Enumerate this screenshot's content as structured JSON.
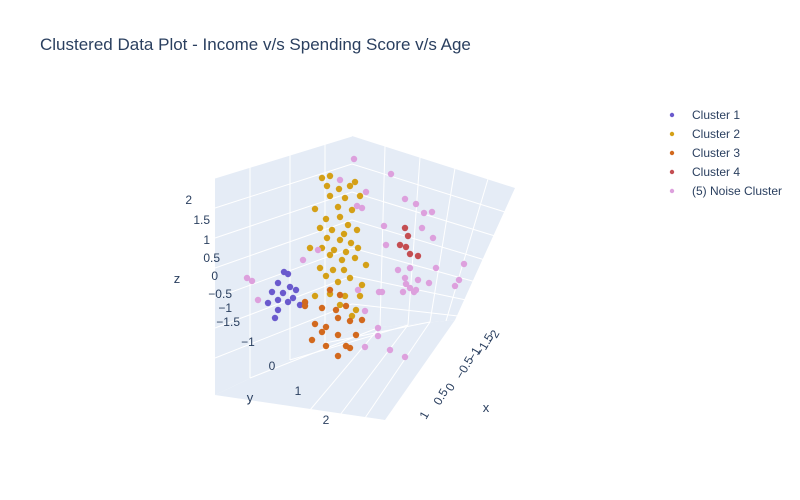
{
  "chart_data": {
    "type": "scatter",
    "title": "Clustered Data Plot - Income v/s Spending Score v/s Age",
    "xlabel": "x",
    "ylabel": "y",
    "zlabel": "z",
    "x_ticks": [
      "−2",
      "−1.5",
      "−1",
      "−0.5",
      "0",
      "0.5",
      "1"
    ],
    "y_ticks": [
      "−1",
      "0",
      "1",
      "2"
    ],
    "z_ticks": [
      "2",
      "1.5",
      "1",
      "0.5",
      "0",
      "−0.5",
      "−1",
      "−1.5"
    ],
    "legend_position": "top-right",
    "series": [
      {
        "name": "Cluster 1",
        "color": "#6a5acd",
        "points": [
          [
            284,
            272
          ],
          [
            288,
            274
          ],
          [
            278,
            283
          ],
          [
            290,
            287
          ],
          [
            296,
            290
          ],
          [
            272,
            292
          ],
          [
            283,
            293
          ],
          [
            293,
            298
          ],
          [
            278,
            300
          ],
          [
            288,
            302
          ],
          [
            300,
            305
          ],
          [
            305,
            303
          ],
          [
            278,
            310
          ],
          [
            268,
            303
          ],
          [
            275,
            318
          ]
        ]
      },
      {
        "name": "Cluster 2",
        "color": "#d4a017",
        "points": [
          [
            322,
            178
          ],
          [
            330,
            176
          ],
          [
            327,
            186
          ],
          [
            339,
            189
          ],
          [
            350,
            186
          ],
          [
            355,
            182
          ],
          [
            330,
            196
          ],
          [
            345,
            198
          ],
          [
            360,
            196
          ],
          [
            315,
            209
          ],
          [
            338,
            207
          ],
          [
            352,
            210
          ],
          [
            326,
            219
          ],
          [
            340,
            217
          ],
          [
            348,
            225
          ],
          [
            320,
            228
          ],
          [
            332,
            230
          ],
          [
            344,
            234
          ],
          [
            357,
            230
          ],
          [
            327,
            238
          ],
          [
            340,
            240
          ],
          [
            351,
            243
          ],
          [
            310,
            248
          ],
          [
            322,
            248
          ],
          [
            334,
            250
          ],
          [
            346,
            252
          ],
          [
            358,
            248
          ],
          [
            330,
            255
          ],
          [
            342,
            260
          ],
          [
            355,
            258
          ],
          [
            366,
            265
          ],
          [
            320,
            268
          ],
          [
            333,
            270
          ],
          [
            344,
            270
          ],
          [
            326,
            276
          ],
          [
            338,
            282
          ],
          [
            350,
            278
          ],
          [
            362,
            285
          ],
          [
            315,
            296
          ],
          [
            330,
            294
          ],
          [
            345,
            296
          ],
          [
            360,
            296
          ],
          [
            340,
            305
          ],
          [
            356,
            310
          ],
          [
            352,
            316
          ]
        ]
      },
      {
        "name": "Cluster 3",
        "color": "#d2691e",
        "points": [
          [
            330,
            290
          ],
          [
            340,
            295
          ],
          [
            305,
            302
          ],
          [
            322,
            308
          ],
          [
            336,
            310
          ],
          [
            346,
            306
          ],
          [
            315,
            324
          ],
          [
            326,
            327
          ],
          [
            338,
            318
          ],
          [
            350,
            321
          ],
          [
            362,
            320
          ],
          [
            322,
            332
          ],
          [
            338,
            335
          ],
          [
            356,
            335
          ],
          [
            312,
            340
          ],
          [
            326,
            346
          ],
          [
            346,
            346
          ],
          [
            338,
            356
          ],
          [
            350,
            348
          ],
          [
            305,
            306
          ]
        ]
      },
      {
        "name": "Cluster 4",
        "color": "#c44e52",
        "points": [
          [
            405,
            228
          ],
          [
            408,
            236
          ],
          [
            400,
            245
          ],
          [
            406,
            247
          ],
          [
            410,
            254
          ],
          [
            418,
            256
          ]
        ]
      },
      {
        "name": "(5) Noise Cluster",
        "color": "#dda0dd",
        "points": [
          [
            354,
            159
          ],
          [
            391,
            174
          ],
          [
            366,
            192
          ],
          [
            405,
            199
          ],
          [
            416,
            204
          ],
          [
            424,
            213
          ],
          [
            432,
            212
          ],
          [
            362,
            208
          ],
          [
            340,
            180
          ],
          [
            357,
            206
          ],
          [
            422,
            228
          ],
          [
            384,
            226
          ],
          [
            433,
            238
          ],
          [
            386,
            245
          ],
          [
            318,
            250
          ],
          [
            303,
            260
          ],
          [
            410,
            268
          ],
          [
            436,
            268
          ],
          [
            464,
            264
          ],
          [
            398,
            270
          ],
          [
            405,
            278
          ],
          [
            418,
            280
          ],
          [
            406,
            284
          ],
          [
            410,
            288
          ],
          [
            416,
            290
          ],
          [
            429,
            283
          ],
          [
            459,
            280
          ],
          [
            455,
            286
          ],
          [
            379,
            292
          ],
          [
            382,
            292
          ],
          [
            403,
            292
          ],
          [
            414,
            292
          ],
          [
            358,
            290
          ],
          [
            365,
            311
          ],
          [
            378,
            328
          ],
          [
            378,
            336
          ],
          [
            390,
            350
          ],
          [
            405,
            357
          ],
          [
            365,
            347
          ],
          [
            258,
            300
          ],
          [
            247,
            278
          ],
          [
            252,
            281
          ]
        ]
      }
    ]
  }
}
